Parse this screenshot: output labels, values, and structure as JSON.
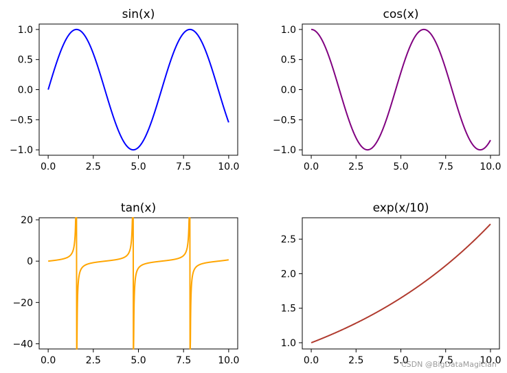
{
  "watermark": "CSDN @BigDataMagician",
  "chart_data": [
    {
      "type": "line",
      "title": "sin(x)",
      "function": "sin",
      "color": "#0000ff",
      "xlim": [
        0,
        10
      ],
      "ylim": [
        -1.0,
        1.0
      ],
      "xticks": [
        "0.0",
        "2.5",
        "5.0",
        "7.5",
        "10.0"
      ],
      "yticks": [
        "1.0",
        "0.5",
        "0.0",
        "−0.5",
        "−1.0"
      ],
      "ytick_values": [
        1.0,
        0.5,
        0.0,
        -0.5,
        -1.0
      ],
      "series": [
        {
          "x": [
            0,
            0.5,
            1.0,
            1.5,
            2.0,
            2.5,
            3.0,
            3.5,
            4.0,
            4.5,
            5.0,
            5.5,
            6.0,
            6.5,
            7.0,
            7.5,
            8.0,
            8.5,
            9.0,
            9.5,
            10.0
          ],
          "y": [
            0,
            0.479,
            0.841,
            0.997,
            0.909,
            0.598,
            0.141,
            -0.351,
            -0.757,
            -0.978,
            -0.959,
            -0.706,
            -0.279,
            0.215,
            0.657,
            0.938,
            0.989,
            0.798,
            0.412,
            -0.075,
            -0.544
          ]
        }
      ]
    },
    {
      "type": "line",
      "title": "cos(x)",
      "function": "cos",
      "color": "#800080",
      "xlim": [
        0,
        10
      ],
      "ylim": [
        -1.0,
        1.0
      ],
      "xticks": [
        "0.0",
        "2.5",
        "5.0",
        "7.5",
        "10.0"
      ],
      "yticks": [
        "1.0",
        "0.5",
        "0.0",
        "−0.5",
        "−1.0"
      ],
      "ytick_values": [
        1.0,
        0.5,
        0.0,
        -0.5,
        -1.0
      ],
      "series": [
        {
          "x": [
            0,
            0.5,
            1.0,
            1.5,
            2.0,
            2.5,
            3.0,
            3.5,
            4.0,
            4.5,
            5.0,
            5.5,
            6.0,
            6.5,
            7.0,
            7.5,
            8.0,
            8.5,
            9.0,
            9.5,
            10.0
          ],
          "y": [
            1.0,
            0.878,
            0.54,
            0.071,
            -0.416,
            -0.801,
            -0.99,
            -0.936,
            -0.654,
            -0.211,
            0.284,
            0.709,
            0.96,
            0.977,
            0.754,
            0.347,
            -0.146,
            -0.602,
            -0.911,
            -0.997,
            -0.839
          ]
        }
      ]
    },
    {
      "type": "line",
      "title": "tan(x)",
      "function": "tan",
      "color": "#ffa500",
      "xlim": [
        0,
        10
      ],
      "ylim": [
        -40,
        20
      ],
      "xticks": [
        "0.0",
        "2.5",
        "5.0",
        "7.5",
        "10.0"
      ],
      "yticks": [
        "20",
        "0",
        "−20",
        "−40"
      ],
      "ytick_values": [
        20,
        0,
        -20,
        -40
      ],
      "series": [
        {
          "x": [
            0,
            0.5,
            1.0,
            1.4,
            1.55,
            1.6,
            2.0,
            2.5,
            3.0,
            3.5,
            4.0,
            4.5,
            4.65,
            4.75,
            5.0,
            5.5,
            6.0,
            6.5,
            7.0,
            7.5,
            7.75,
            7.9,
            8.5,
            9.0,
            9.5,
            10.0
          ],
          "y": [
            0,
            0.55,
            1.56,
            5.8,
            18,
            -22,
            -2.2,
            -0.75,
            -0.14,
            0.37,
            1.16,
            4.64,
            13,
            -28.5,
            -3.38,
            -0.99,
            -0.29,
            0.22,
            0.87,
            2.7,
            13,
            -40,
            -1.39,
            -0.45,
            0.08,
            0.65
          ]
        }
      ]
    },
    {
      "type": "line",
      "title": "exp(x/10)",
      "function": "exp10",
      "color": "#b03a2e",
      "xlim": [
        0,
        10
      ],
      "ylim": [
        1.0,
        2.72
      ],
      "xticks": [
        "0.0",
        "2.5",
        "5.0",
        "7.5",
        "10.0"
      ],
      "yticks": [
        "2.5",
        "2.0",
        "1.5",
        "1.0"
      ],
      "ytick_values": [
        2.5,
        2.0,
        1.5,
        1.0
      ],
      "series": [
        {
          "x": [
            0,
            1,
            2,
            3,
            4,
            5,
            6,
            7,
            8,
            9,
            10
          ],
          "y": [
            1.0,
            1.105,
            1.221,
            1.35,
            1.492,
            1.649,
            1.822,
            2.014,
            2.226,
            2.46,
            2.718
          ]
        }
      ]
    }
  ]
}
